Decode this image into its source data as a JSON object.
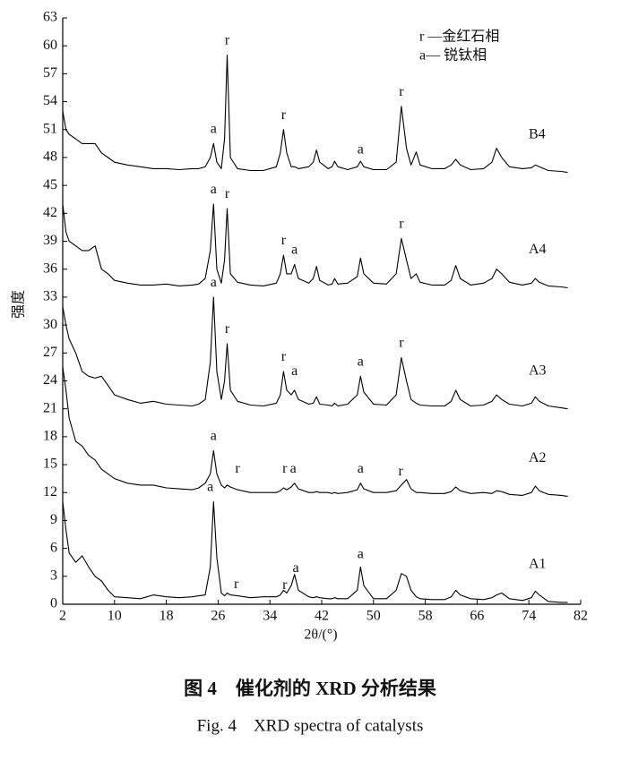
{
  "chart_data": {
    "type": "line",
    "x_label": "2θ/(°)",
    "y_label": "强度",
    "xlim": [
      2,
      82
    ],
    "xticks": [
      2,
      10,
      18,
      26,
      34,
      42,
      50,
      58,
      66,
      74,
      82
    ],
    "ylim": [
      0,
      63
    ],
    "yticks": [
      0,
      3,
      6,
      9,
      12,
      15,
      18,
      21,
      24,
      27,
      30,
      33,
      36,
      39,
      42,
      45,
      48,
      51,
      54,
      57,
      60,
      63
    ],
    "notes": [
      "r —金红石相",
      "a— 锐钛相"
    ],
    "caption_cn": "图 4　催化剂的 XRD 分析结果",
    "caption_en": "Fig. 4　XRD spectra of catalysts",
    "x": [
      2,
      2.5,
      3,
      4,
      5,
      6,
      7,
      8,
      9,
      10,
      12,
      14,
      16,
      18,
      20,
      22,
      23,
      24,
      24.8,
      25.3,
      25.8,
      26.5,
      27.0,
      27.4,
      27.9,
      29,
      31,
      33,
      35,
      35.6,
      36.1,
      36.6,
      37.3,
      37.8,
      38.4,
      40,
      40.7,
      41.2,
      41.7,
      43,
      43.6,
      44,
      44.5,
      46,
      47.5,
      48,
      48.5,
      50,
      52,
      53.5,
      54.3,
      55.1,
      55.8,
      56.6,
      57.2,
      59,
      61,
      62,
      62.7,
      63.4,
      65,
      67,
      68.3,
      69,
      69.8,
      71,
      73,
      74.4,
      75,
      75.6,
      77,
      79,
      80
    ],
    "series": [
      {
        "name": "B4",
        "color": "#000000",
        "values": [
          53,
          51,
          50.5,
          50,
          49.5,
          49.5,
          49.5,
          48.5,
          48,
          47.5,
          47.2,
          47,
          46.8,
          46.8,
          46.7,
          46.8,
          46.8,
          47,
          48,
          49.5,
          47.5,
          46.8,
          50,
          59,
          48,
          46.8,
          46.6,
          46.6,
          47,
          48.5,
          51,
          48.5,
          47,
          47,
          46.8,
          47,
          47.5,
          48.8,
          47.5,
          46.8,
          47,
          47.6,
          47,
          46.7,
          47,
          47.6,
          47,
          46.7,
          46.7,
          47.5,
          53.5,
          49,
          47.2,
          48.6,
          47.2,
          46.8,
          46.8,
          47.2,
          47.8,
          47.2,
          46.7,
          46.8,
          47.5,
          49,
          48,
          47,
          46.8,
          46.9,
          47.2,
          47,
          46.6,
          46.5,
          46.4
        ]
      },
      {
        "name": "A4",
        "color": "#000000",
        "values": [
          43,
          40,
          39,
          38.5,
          38,
          38,
          38.5,
          36,
          35.5,
          34.8,
          34.5,
          34.3,
          34.3,
          34.4,
          34.2,
          34.3,
          34.4,
          35,
          38,
          43,
          36,
          34.5,
          37,
          42.5,
          35.5,
          34.6,
          34.3,
          34.2,
          34.5,
          35.5,
          37.5,
          35.5,
          35.5,
          36.5,
          35,
          34.5,
          35,
          36.3,
          34.8,
          34.3,
          34.4,
          35,
          34.4,
          34.5,
          35.2,
          37.2,
          35.5,
          34.5,
          34.4,
          35.5,
          39.3,
          37,
          35,
          35.5,
          34.6,
          34.3,
          34.3,
          34.8,
          36.4,
          35,
          34.3,
          34.5,
          35,
          36,
          35.5,
          34.6,
          34.3,
          34.5,
          35,
          34.6,
          34.2,
          34.1,
          34
        ]
      },
      {
        "name": "A3",
        "color": "#000000",
        "values": [
          32,
          30,
          28.5,
          27,
          25,
          24.5,
          24.3,
          24.5,
          23.5,
          22.5,
          22,
          21.6,
          21.8,
          21.5,
          21.4,
          21.3,
          21.5,
          22,
          26,
          33,
          25,
          22,
          24,
          28,
          23,
          21.8,
          21.4,
          21.3,
          21.6,
          22.5,
          25,
          23,
          22.5,
          23,
          22,
          21.5,
          21.6,
          22.3,
          21.5,
          21.4,
          21.3,
          21.6,
          21.3,
          21.5,
          22.5,
          24.5,
          22.8,
          21.5,
          21.4,
          22.5,
          26.5,
          24,
          22,
          21.6,
          21.4,
          21.3,
          21.3,
          21.8,
          23,
          22,
          21.3,
          21.4,
          21.8,
          22.5,
          22,
          21.5,
          21.3,
          21.6,
          22.3,
          21.8,
          21.3,
          21.1,
          21
        ]
      },
      {
        "name": "A2",
        "color": "#000000",
        "values": [
          25.5,
          23,
          20,
          17.5,
          17,
          16,
          15.5,
          14.5,
          14,
          13.5,
          13,
          12.8,
          12.8,
          12.5,
          12.4,
          12.3,
          12.5,
          13,
          14,
          16.5,
          14,
          12.8,
          12.5,
          12.8,
          12.6,
          12.3,
          12,
          12,
          12,
          12.2,
          12.5,
          12.3,
          12.6,
          13,
          12.4,
          12,
          12,
          12.1,
          12,
          12,
          11.9,
          12,
          11.9,
          12,
          12.3,
          13,
          12.4,
          12,
          12,
          12.2,
          12.8,
          13.4,
          12.4,
          12,
          12,
          11.9,
          11.9,
          12.1,
          12.6,
          12.2,
          11.9,
          12,
          11.9,
          12.2,
          12.1,
          11.8,
          11.7,
          12,
          12.7,
          12.2,
          11.8,
          11.7,
          11.6
        ]
      },
      {
        "name": "A1",
        "color": "#000000",
        "values": [
          11,
          8,
          5.5,
          4.5,
          5.2,
          4,
          3,
          2.5,
          1.5,
          0.8,
          0.7,
          0.6,
          1,
          0.8,
          0.7,
          0.8,
          0.9,
          1,
          4,
          11,
          5,
          1.2,
          0.9,
          1.2,
          1,
          0.9,
          0.7,
          0.8,
          0.8,
          1,
          1.5,
          1.2,
          2,
          3.2,
          1.5,
          0.8,
          0.7,
          0.8,
          0.7,
          0.6,
          0.6,
          0.7,
          0.6,
          0.6,
          1.5,
          4,
          2,
          0.6,
          0.6,
          1.5,
          3.3,
          3,
          1.5,
          0.8,
          0.6,
          0.5,
          0.5,
          0.8,
          1.5,
          1,
          0.6,
          0.5,
          0.7,
          1,
          1.2,
          0.6,
          0.4,
          0.7,
          1.4,
          1,
          0.3,
          0.2,
          0.2
        ]
      }
    ],
    "annotations": [
      {
        "text": "a",
        "x": 25.3,
        "y": 51
      },
      {
        "text": "r",
        "x": 27.4,
        "y": 60.5
      },
      {
        "text": "r",
        "x": 36.1,
        "y": 52.5
      },
      {
        "text": "a",
        "x": 48,
        "y": 48.8
      },
      {
        "text": "r",
        "x": 54.3,
        "y": 55
      },
      {
        "text": "a",
        "x": 25.3,
        "y": 44.5
      },
      {
        "text": "r",
        "x": 27.4,
        "y": 44
      },
      {
        "text": "r",
        "x": 36.1,
        "y": 39
      },
      {
        "text": "a",
        "x": 37.8,
        "y": 38
      },
      {
        "text": "r",
        "x": 54.3,
        "y": 40.8
      },
      {
        "text": "a",
        "x": 25.3,
        "y": 34.5
      },
      {
        "text": "r",
        "x": 27.4,
        "y": 29.5
      },
      {
        "text": "r",
        "x": 36.1,
        "y": 26.5
      },
      {
        "text": "a",
        "x": 37.8,
        "y": 25
      },
      {
        "text": "a",
        "x": 48,
        "y": 26
      },
      {
        "text": "r",
        "x": 54.3,
        "y": 28
      },
      {
        "text": "a",
        "x": 25.3,
        "y": 18
      },
      {
        "text": "r",
        "x": 29,
        "y": 14.5
      },
      {
        "text": "r",
        "x": 36.3,
        "y": 14.5
      },
      {
        "text": "a",
        "x": 37.6,
        "y": 14.5
      },
      {
        "text": "a",
        "x": 48,
        "y": 14.5
      },
      {
        "text": "r",
        "x": 54.2,
        "y": 14.2
      },
      {
        "text": "a",
        "x": 24.8,
        "y": 12.5
      },
      {
        "text": "r",
        "x": 28.8,
        "y": 2.1
      },
      {
        "text": "r",
        "x": 36.3,
        "y": 2
      },
      {
        "text": "a",
        "x": 38,
        "y": 3.8
      },
      {
        "text": "a",
        "x": 48,
        "y": 5.3
      }
    ]
  }
}
